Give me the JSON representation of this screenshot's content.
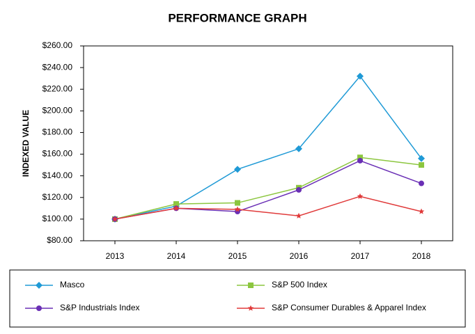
{
  "chart_data": {
    "type": "line",
    "title": "PERFORMANCE GRAPH",
    "y_label": "INDEXED VALUE",
    "categories": [
      "2013",
      "2014",
      "2015",
      "2016",
      "2017",
      "2018"
    ],
    "series": [
      {
        "name": "Masco",
        "color": "#1f9ad6",
        "marker": "diamond",
        "values": [
          100,
          112,
          146,
          165,
          232,
          156
        ]
      },
      {
        "name": "S&P 500 Index",
        "color": "#8cc63f",
        "marker": "square",
        "values": [
          100,
          114,
          115,
          129,
          157,
          150
        ]
      },
      {
        "name": "S&P Industrials Index",
        "color": "#6a2fb5",
        "marker": "circle",
        "values": [
          100,
          110,
          107,
          127,
          154,
          133
        ]
      },
      {
        "name": "S&P Consumer Durables & Apparel Index",
        "color": "#e03a3a",
        "marker": "star",
        "values": [
          100,
          110,
          109,
          103,
          121,
          107
        ]
      }
    ],
    "ylim": [
      80,
      260
    ],
    "yticks": [
      {
        "value": 80,
        "label": "$80.00"
      },
      {
        "value": 100,
        "label": "$100.00"
      },
      {
        "value": 120,
        "label": "$120.00"
      },
      {
        "value": 140,
        "label": "$140.00"
      },
      {
        "value": 160,
        "label": "$160.00"
      },
      {
        "value": 180,
        "label": "$180.00"
      },
      {
        "value": 200,
        "label": "$200.00"
      },
      {
        "value": 220,
        "label": "$220.00"
      },
      {
        "value": 240,
        "label": "$240.00"
      },
      {
        "value": 260,
        "label": "$260.00"
      }
    ]
  }
}
